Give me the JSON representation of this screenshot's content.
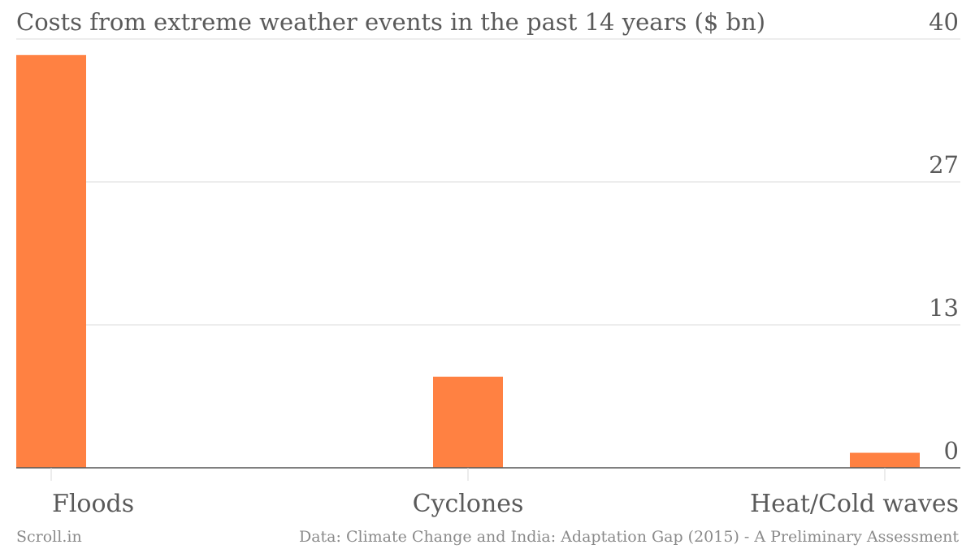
{
  "chart_data": {
    "type": "bar",
    "title": "Costs from extreme weather events in the past 14 years ($ bn)",
    "categories": [
      "Floods",
      "Cyclones",
      "Heat/Cold waves"
    ],
    "values": [
      38.5,
      8.5,
      1.4
    ],
    "ylim": [
      0,
      40
    ],
    "yticks": [
      "0",
      "13",
      "27",
      "40"
    ],
    "ytick_values": [
      0,
      13.333,
      26.667,
      40
    ],
    "bar_color": "#ff8142",
    "grid": true,
    "xlabel": "",
    "ylabel": ""
  },
  "footer": {
    "source_brand": "Scroll.in",
    "data_credit": "Data: Climate Change and India: Adaptation Gap (2015) - A Preliminary Assessment"
  }
}
